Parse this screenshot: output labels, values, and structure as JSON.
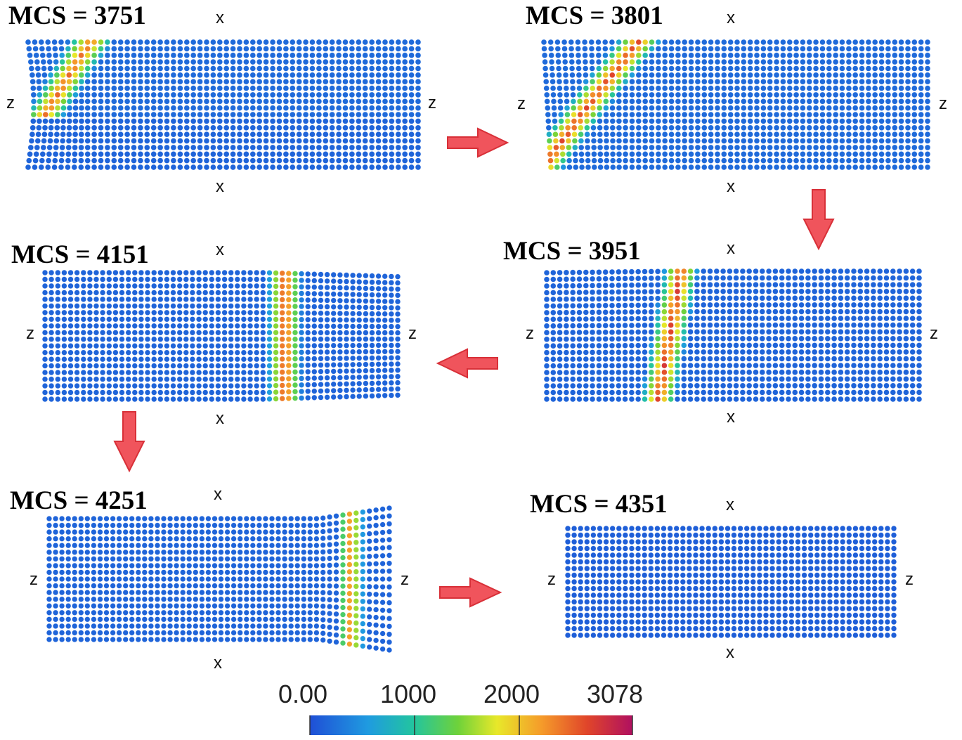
{
  "panels": [
    {
      "id": "p1",
      "mcs": "MCS = 3751",
      "x_top": "x",
      "x_bottom": "x",
      "z_left": "z",
      "z_right": "z"
    },
    {
      "id": "p2",
      "mcs": "MCS = 3801",
      "x_top": "x",
      "x_bottom": "x",
      "z_left": "z",
      "z_right": "z"
    },
    {
      "id": "p3",
      "mcs": "MCS = 4151",
      "x_top": "x",
      "x_bottom": "x",
      "z_left": "z",
      "z_right": "z"
    },
    {
      "id": "p4",
      "mcs": "MCS = 3951",
      "x_top": "x",
      "x_bottom": "x",
      "z_left": "z",
      "z_right": "z"
    },
    {
      "id": "p5",
      "mcs": "MCS = 4251",
      "x_top": "x",
      "x_bottom": "x",
      "z_left": "z",
      "z_right": "z"
    },
    {
      "id": "p6",
      "mcs": "MCS = 4351",
      "x_top": "x",
      "x_bottom": "x",
      "z_left": "z",
      "z_right": "z"
    }
  ],
  "colorbar": {
    "ticks": [
      "0.00",
      "1000",
      "2000",
      "3078"
    ],
    "min": 0,
    "max": 3078,
    "colors": [
      "#1f4fd6",
      "#1f9be0",
      "#22c4a0",
      "#6fd23a",
      "#e8e82a",
      "#f59a2a",
      "#e0452a",
      "#b01060"
    ]
  },
  "colors": {
    "lattice_base": "#1e4fa3",
    "arrow_fill": "#f0545c",
    "arrow_stroke": "#d83038"
  }
}
